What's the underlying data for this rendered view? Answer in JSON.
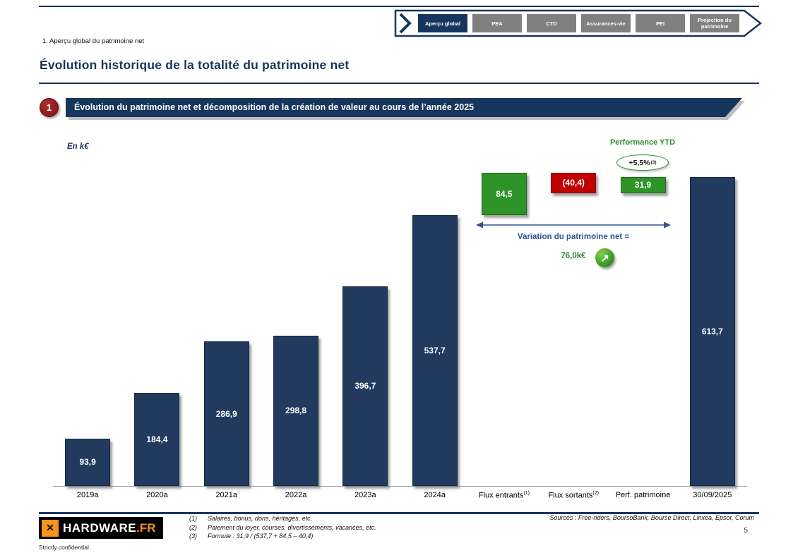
{
  "colors": {
    "navy": "#17365D",
    "navy_bar": "#213A5E",
    "green": "#2E9428",
    "green_dark": "#1D6B18",
    "green_text": "#2E8B2E",
    "red": "#C00000",
    "red_dark": "#7F0000",
    "maroon": "#8B1A1A",
    "blue_text": "#2F5496",
    "orange": "#F7941D",
    "tab_gray": "#808080"
  },
  "nav": {
    "tabs": [
      {
        "label": "Aperçu global",
        "selected": true
      },
      {
        "label": "PEA",
        "selected": false
      },
      {
        "label": "CTO",
        "selected": false
      },
      {
        "label": "Assurances-vie",
        "selected": false
      },
      {
        "label": "PEI",
        "selected": false
      },
      {
        "label": "Projection du patrimoine",
        "selected": false
      }
    ]
  },
  "header": {
    "section_label": "1. Aperçu global du patrimoine net",
    "title": "Évolution historique de la totalité du patrimoine net"
  },
  "banner": {
    "number": "1",
    "text": "Évolution du patrimoine net et décomposition de la création de valeur au cours de l’année 2025"
  },
  "chart_data": {
    "type": "bar",
    "subtype": "waterfall",
    "title": "Évolution du patrimoine net et décomposition de la création de valeur au cours de l’année 2025",
    "unit_label": "En k€",
    "ylim": [
      0,
      640
    ],
    "grid": false,
    "categories": [
      "2019a",
      "2020a",
      "2021a",
      "2022a",
      "2023a",
      "2024a",
      "Flux entrants",
      "Flux sortants",
      "Perf. patrimoine",
      "30/09/2025"
    ],
    "bars": [
      {
        "category": "2019a",
        "sup": "",
        "label": "93,9",
        "start": 0,
        "end": 93.9,
        "color": "navy"
      },
      {
        "category": "2020a",
        "sup": "",
        "label": "184,4",
        "start": 0,
        "end": 184.4,
        "color": "navy"
      },
      {
        "category": "2021a",
        "sup": "",
        "label": "286,9",
        "start": 0,
        "end": 286.9,
        "color": "navy"
      },
      {
        "category": "2022a",
        "sup": "",
        "label": "298,8",
        "start": 0,
        "end": 298.8,
        "color": "navy"
      },
      {
        "category": "2023a",
        "sup": "",
        "label": "396,7",
        "start": 0,
        "end": 396.7,
        "color": "navy"
      },
      {
        "category": "2024a",
        "sup": "",
        "label": "537,7",
        "start": 0,
        "end": 537.7,
        "color": "navy"
      },
      {
        "category": "Flux entrants",
        "sup": "(1)",
        "label": "84,5",
        "start": 537.7,
        "end": 622.2,
        "color": "green"
      },
      {
        "category": "Flux sortants",
        "sup": "(2)",
        "label": "(40,4)",
        "start": 622.2,
        "end": 581.8,
        "color": "red"
      },
      {
        "category": "Perf. patrimoine",
        "sup": "",
        "label": "31,9",
        "start": 581.8,
        "end": 613.7,
        "color": "green"
      },
      {
        "category": "30/09/2025",
        "sup": "",
        "label": "613,7",
        "start": 0,
        "end": 613.7,
        "color": "navy"
      }
    ]
  },
  "annotations": {
    "performance_ytd_label": "Performance YTD",
    "performance_ytd_value": "+5,5%",
    "performance_ytd_sup": "(3)",
    "variation_label": "Variation du patrimoine net =",
    "variation_value": "76,0k€"
  },
  "icons": {
    "growth_arrow": "↗",
    "logo_glyph": "✕"
  },
  "footer": {
    "footnotes": [
      {
        "num": "(1)",
        "text": "Salaires, bonus, dons, héritages, etc."
      },
      {
        "num": "(2)",
        "text": "Paiement du loyer, courses, divertissements, vacances, etc."
      },
      {
        "num": "(3)",
        "text": "Formule : 31,9 / (537,7 + 84,5 – 40,4)"
      }
    ],
    "sources": "Sources : Free-riders, BoursoBank, Bourse Direct, Linxea, Epsor, Corum",
    "page_number": "5",
    "confidential": "Strictly confidential",
    "logo_text": "HARDWARE",
    "logo_suffix": ".FR"
  }
}
